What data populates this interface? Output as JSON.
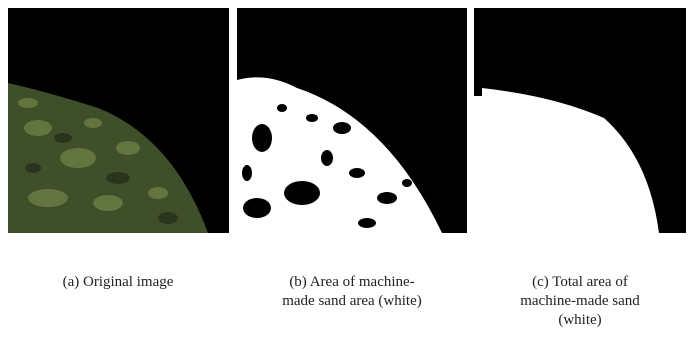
{
  "figure": {
    "panels": [
      {
        "caption": [
          "(a) Original image"
        ]
      },
      {
        "caption": [
          "(b) Area of machine-",
          "made sand area (white)"
        ]
      },
      {
        "caption": [
          "(c) Total area of",
          "machine-made sand",
          "(white)"
        ]
      }
    ]
  }
}
